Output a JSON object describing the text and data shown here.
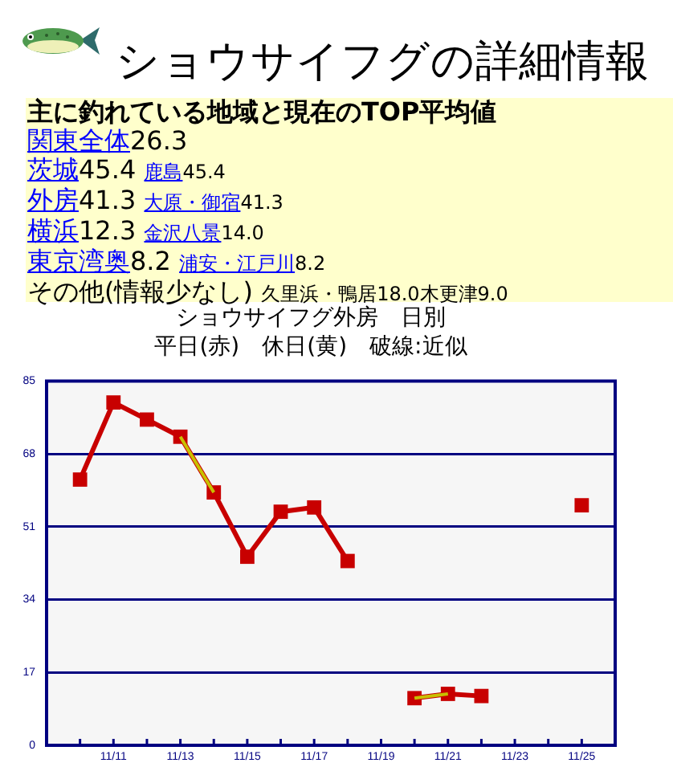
{
  "chart_data": [
    {
      "type": "other",
      "title": "ショウサイフグの詳細情報",
      "subtitle": "主に釣れている地域と現在のTOP平均値",
      "annotations": [
        "関東全体26.3",
        "茨城45.4 鹿島45.4",
        "外房41.3 大原・御宿41.3",
        "横浜12.3 金沢八景14.0",
        "東京湾奥8.2 浦安・江戸川8.2",
        "その他(情報少なし) 久里浜・鴨居18.0木更津9.0"
      ]
    },
    {
      "type": "line",
      "title": "ショウサイフグ外房　日別",
      "subtitle": "平日(赤)　休日(黄)　破線:近似",
      "x": [
        "--11-10",
        "--11-11",
        "--11-12",
        "--11-13",
        "--11-14",
        "--11-15",
        "--11-16",
        "--11-17",
        "--11-18",
        "--11-19",
        "--11-20",
        "--11-21",
        "--11-22",
        "--11-23",
        "--11-24",
        "--11-25"
      ],
      "series": [
        {
          "color": "#c80000",
          "values": [
            62,
            80,
            76,
            72,
            59,
            44,
            54.5,
            55.5,
            43,
            null,
            11,
            12,
            11.5,
            null,
            null,
            56
          ]
        },
        {
          "color": "#c8c000",
          "marker": "none",
          "values": [
            null,
            null,
            null,
            72,
            59,
            null,
            null,
            null,
            null,
            null,
            11,
            12,
            null,
            null,
            null,
            null
          ]
        }
      ],
      "xlim": [
        "--11-09",
        "--11-26"
      ],
      "xticks": [
        {
          "value": "--11-10",
          "label": null
        },
        {
          "value": "--11-11",
          "label": "11/11"
        },
        {
          "value": "--11-12",
          "label": null
        },
        {
          "value": "--11-13",
          "label": "11/13"
        },
        {
          "value": "--11-14",
          "label": null
        },
        {
          "value": "--11-15",
          "label": "11/15"
        },
        {
          "value": "--11-16",
          "label": null
        },
        {
          "value": "--11-17",
          "label": "11/17"
        },
        {
          "value": "--11-18",
          "label": null
        },
        {
          "value": "--11-19",
          "label": "11/19"
        },
        {
          "value": "--11-20",
          "label": null
        },
        {
          "value": "--11-21",
          "label": "11/21"
        },
        {
          "value": "--11-22",
          "label": null
        },
        {
          "value": "--11-23",
          "label": "11/23"
        },
        {
          "value": "--11-24",
          "label": null
        },
        {
          "value": "--11-25",
          "label": "11/25"
        }
      ],
      "ylim": [
        0,
        85
      ],
      "yticks": [
        0,
        17,
        34,
        51,
        68,
        85
      ],
      "grid": "y",
      "marker": "square"
    }
  ]
}
